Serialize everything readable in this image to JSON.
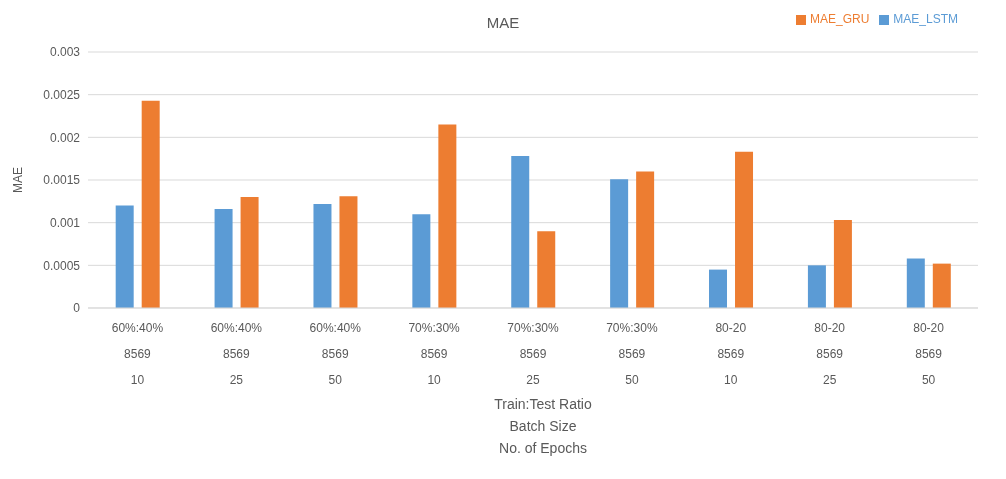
{
  "chart_data": {
    "type": "bar",
    "title": "MAE",
    "ylabel": "MAE",
    "xlabel": "Train:Test Ratio\nBatch Size\nNo. of Epochs",
    "categories": [
      "60%:40%\n8569\n10",
      "60%:40%\n8569\n25",
      "60%:40%\n8569\n50",
      "70%:30%\n8569\n10",
      "70%:30%\n8569\n25",
      "70%:30%\n8569\n50",
      "80-20\n8569\n10",
      "80-20\n8569\n25",
      "80-20\n8569\n50"
    ],
    "series": [
      {
        "name": "MAE_LSTM",
        "color": "#5b9bd5",
        "values": [
          0.0012,
          0.00116,
          0.00122,
          0.0011,
          0.00178,
          0.00151,
          0.00045,
          0.0005,
          0.00058
        ]
      },
      {
        "name": "MAE_GRU",
        "color": "#ed7d31",
        "values": [
          0.00243,
          0.0013,
          0.00131,
          0.00215,
          0.0009,
          0.0016,
          0.00183,
          0.00103,
          0.00052
        ]
      }
    ],
    "ylim": [
      0,
      0.003
    ],
    "yticks": [
      0,
      0.0005,
      0.001,
      0.0015,
      0.002,
      0.0025,
      0.003
    ],
    "grid": "y",
    "legend": "top right"
  }
}
